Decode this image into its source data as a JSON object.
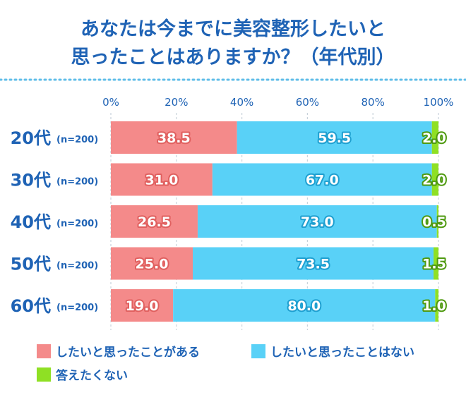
{
  "chart_data": {
    "type": "bar",
    "orientation": "horizontal",
    "stacked": true,
    "title": [
      "あなたは今までに美容整形したいと",
      "思ったことはありますか？（年代別）"
    ],
    "categories": [
      "20代",
      "30代",
      "40代",
      "50代",
      "60代"
    ],
    "category_note": "(n=200)",
    "x_ticks": [
      "0%",
      "20%",
      "40%",
      "60%",
      "80%",
      "100%"
    ],
    "xlim": [
      0,
      100
    ],
    "grid": true,
    "legend_position": "bottom",
    "series": [
      {
        "name": "したいと思ったことがある",
        "color": "#f48a8a",
        "label_stroke": "#e0605f",
        "values": [
          38.5,
          31.0,
          26.5,
          25.0,
          19.0
        ],
        "labels": [
          "38.5",
          "31.0",
          "26.5",
          "25.0",
          "19.0"
        ]
      },
      {
        "name": "したいと思ったことはない",
        "color": "#59d1f7",
        "label_stroke": "#1e9fd0",
        "values": [
          59.5,
          67.0,
          73.0,
          73.5,
          80.0
        ],
        "labels": [
          "59.5",
          "67.0",
          "73.0",
          "73.5",
          "80.0"
        ]
      },
      {
        "name": "答えたくない",
        "color": "#8fe024",
        "label_stroke": "#4f9a10",
        "values": [
          2.0,
          2.0,
          0.5,
          1.5,
          1.0
        ],
        "labels": [
          "2.0",
          "2.0",
          "0.5",
          "1.5",
          "1.0"
        ]
      }
    ]
  }
}
